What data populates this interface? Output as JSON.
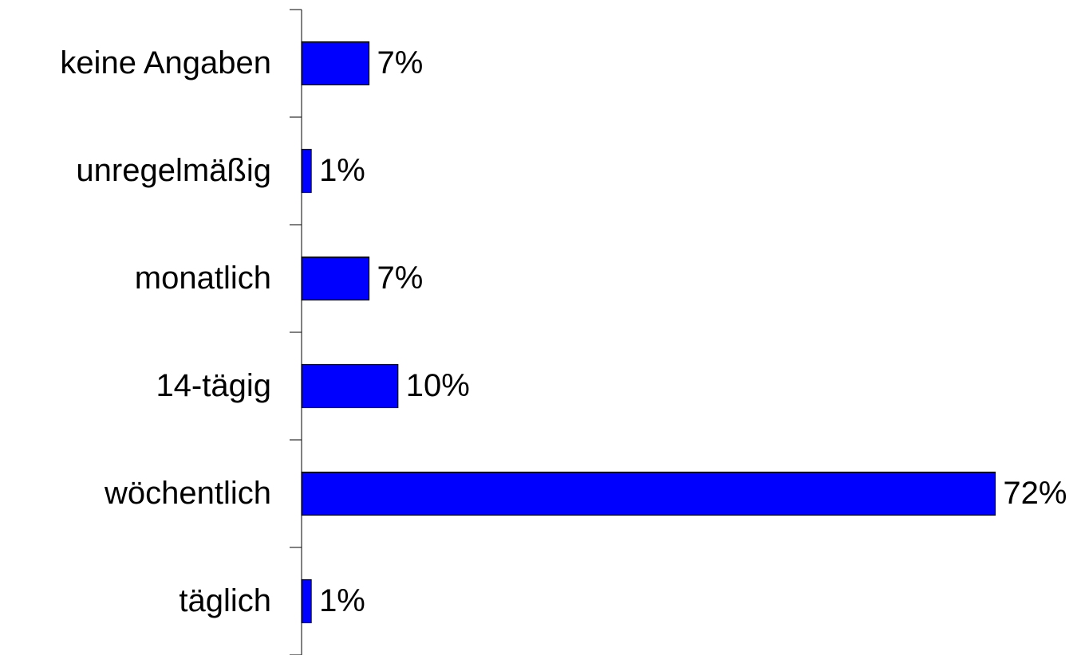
{
  "chart_data": {
    "type": "barh",
    "categories": [
      "keine Angaben",
      "unregelmäßig",
      "monatlich",
      "14-tägig",
      "wöchentlich",
      "täglich"
    ],
    "values": [
      7,
      1,
      7,
      10,
      72,
      1
    ],
    "value_labels": [
      "7%",
      "1%",
      "7%",
      "10%",
      "72%",
      "1%"
    ],
    "color": "#0000ff",
    "xlim": [
      0,
      80
    ]
  }
}
